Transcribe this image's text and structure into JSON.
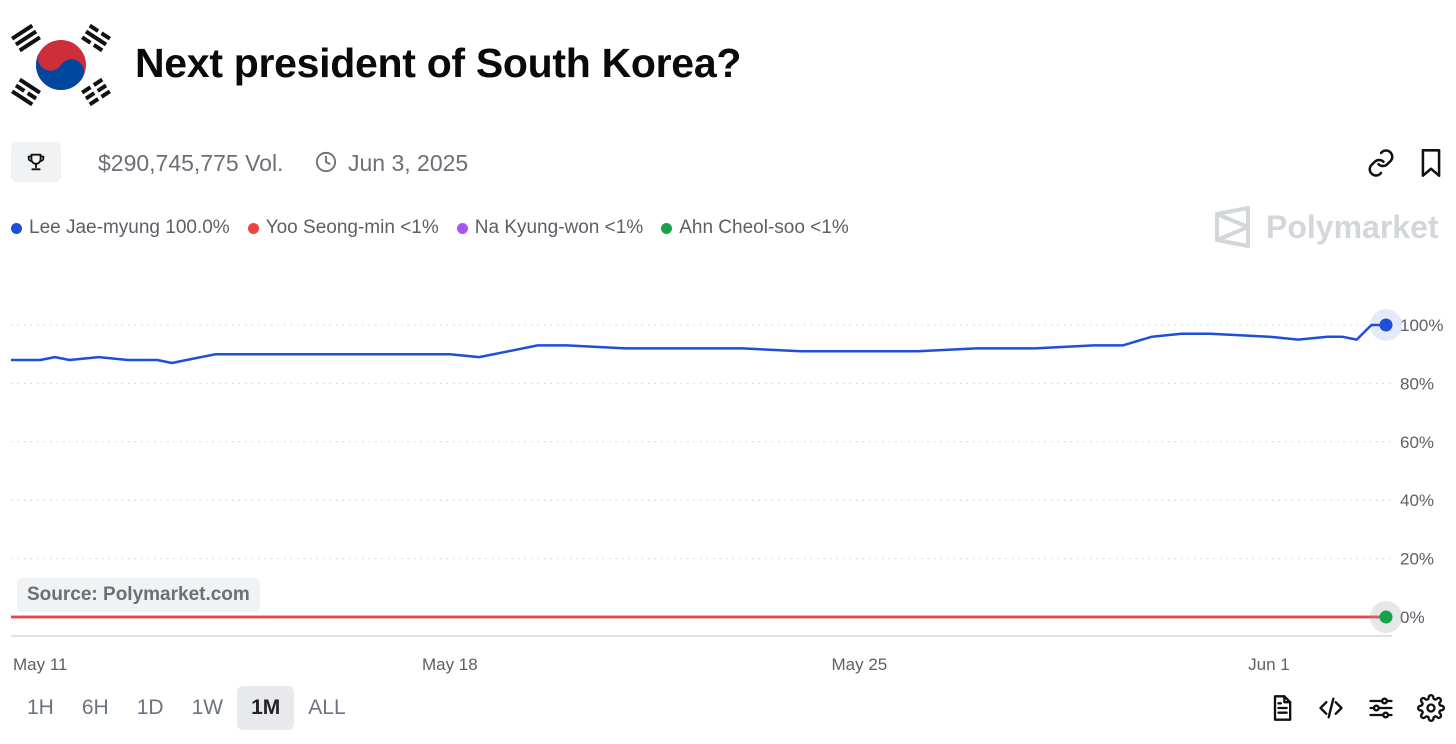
{
  "title": "Next president of South Korea?",
  "volume": "$290,745,775 Vol.",
  "end_date": "Jun 3, 2025",
  "brand": "Polymarket",
  "source_label": "Source: Polymarket.com",
  "icons": [
    "korea-flag-icon",
    "trophy-icon",
    "clock-icon",
    "link-icon",
    "bookmark-icon",
    "document-icon",
    "code-icon",
    "sliders-icon",
    "gear-icon"
  ],
  "legend": [
    {
      "label": "Lee Jae-myung 100.0%",
      "color": "#1e4fd8"
    },
    {
      "label": "Yoo Seong-min <1%",
      "color": "#ef4444"
    },
    {
      "label": "Na Kyung-won <1%",
      "color": "#a855f7"
    },
    {
      "label": "Ahn Cheol-soo <1%",
      "color": "#16a34a"
    }
  ],
  "time_ranges": [
    "1H",
    "6H",
    "1D",
    "1W",
    "1M",
    "ALL"
  ],
  "active_range": "1M",
  "chart_data": {
    "type": "line",
    "x_ticks": [
      "May 11",
      "May 18",
      "May 25",
      "Jun 1"
    ],
    "y_ticks": [
      "100%",
      "80%",
      "60%",
      "40%",
      "20%",
      "0%"
    ],
    "ylim": [
      0,
      100
    ],
    "grid": "horizontal dotted",
    "series": [
      {
        "name": "Lee Jae-myung",
        "color": "#1e4fd8",
        "x": [
          "May 10 12:00",
          "May 11 00:00",
          "May 11 06:00",
          "May 11 12:00",
          "May 12 00:00",
          "May 12 12:00",
          "May 13 00:00",
          "May 13 06:00",
          "May 13 12:00",
          "May 14 00:00",
          "May 15 00:00",
          "May 16 00:00",
          "May 17 00:00",
          "May 18 00:00",
          "May 18 12:00",
          "May 19 00:00",
          "May 19 12:00",
          "May 20 00:00",
          "May 21 00:00",
          "May 22 00:00",
          "May 23 00:00",
          "May 24 00:00",
          "May 25 00:00",
          "May 26 00:00",
          "May 27 00:00",
          "May 28 00:00",
          "May 29 00:00",
          "May 29 12:00",
          "May 30 00:00",
          "May 30 12:00",
          "May 31 00:00",
          "Jun 1 00:00",
          "Jun 1 12:00",
          "Jun 2 00:00",
          "Jun 2 06:00",
          "Jun 2 12:00",
          "Jun 2 18:00",
          "Jun 3 00:00"
        ],
        "values": [
          88,
          88,
          89,
          88,
          89,
          88,
          88,
          87,
          88,
          90,
          90,
          90,
          90,
          90,
          89,
          91,
          93,
          93,
          92,
          92,
          92,
          91,
          91,
          91,
          92,
          92,
          93,
          93,
          96,
          97,
          97,
          96,
          95,
          96,
          96,
          95,
          100,
          100
        ]
      },
      {
        "name": "Yoo Seong-min",
        "color": "#ef4444",
        "x": [
          "May 10 12:00",
          "Jun 3 00:00"
        ],
        "values": [
          0,
          0
        ]
      },
      {
        "name": "Na Kyung-won",
        "color": "#a855f7",
        "x": [
          "May 10 12:00",
          "Jun 3 00:00"
        ],
        "values": [
          0,
          0
        ]
      },
      {
        "name": "Ahn Cheol-soo",
        "color": "#16a34a",
        "x": [
          "May 10 12:00",
          "Jun 3 00:00"
        ],
        "values": [
          0,
          0
        ]
      }
    ]
  }
}
